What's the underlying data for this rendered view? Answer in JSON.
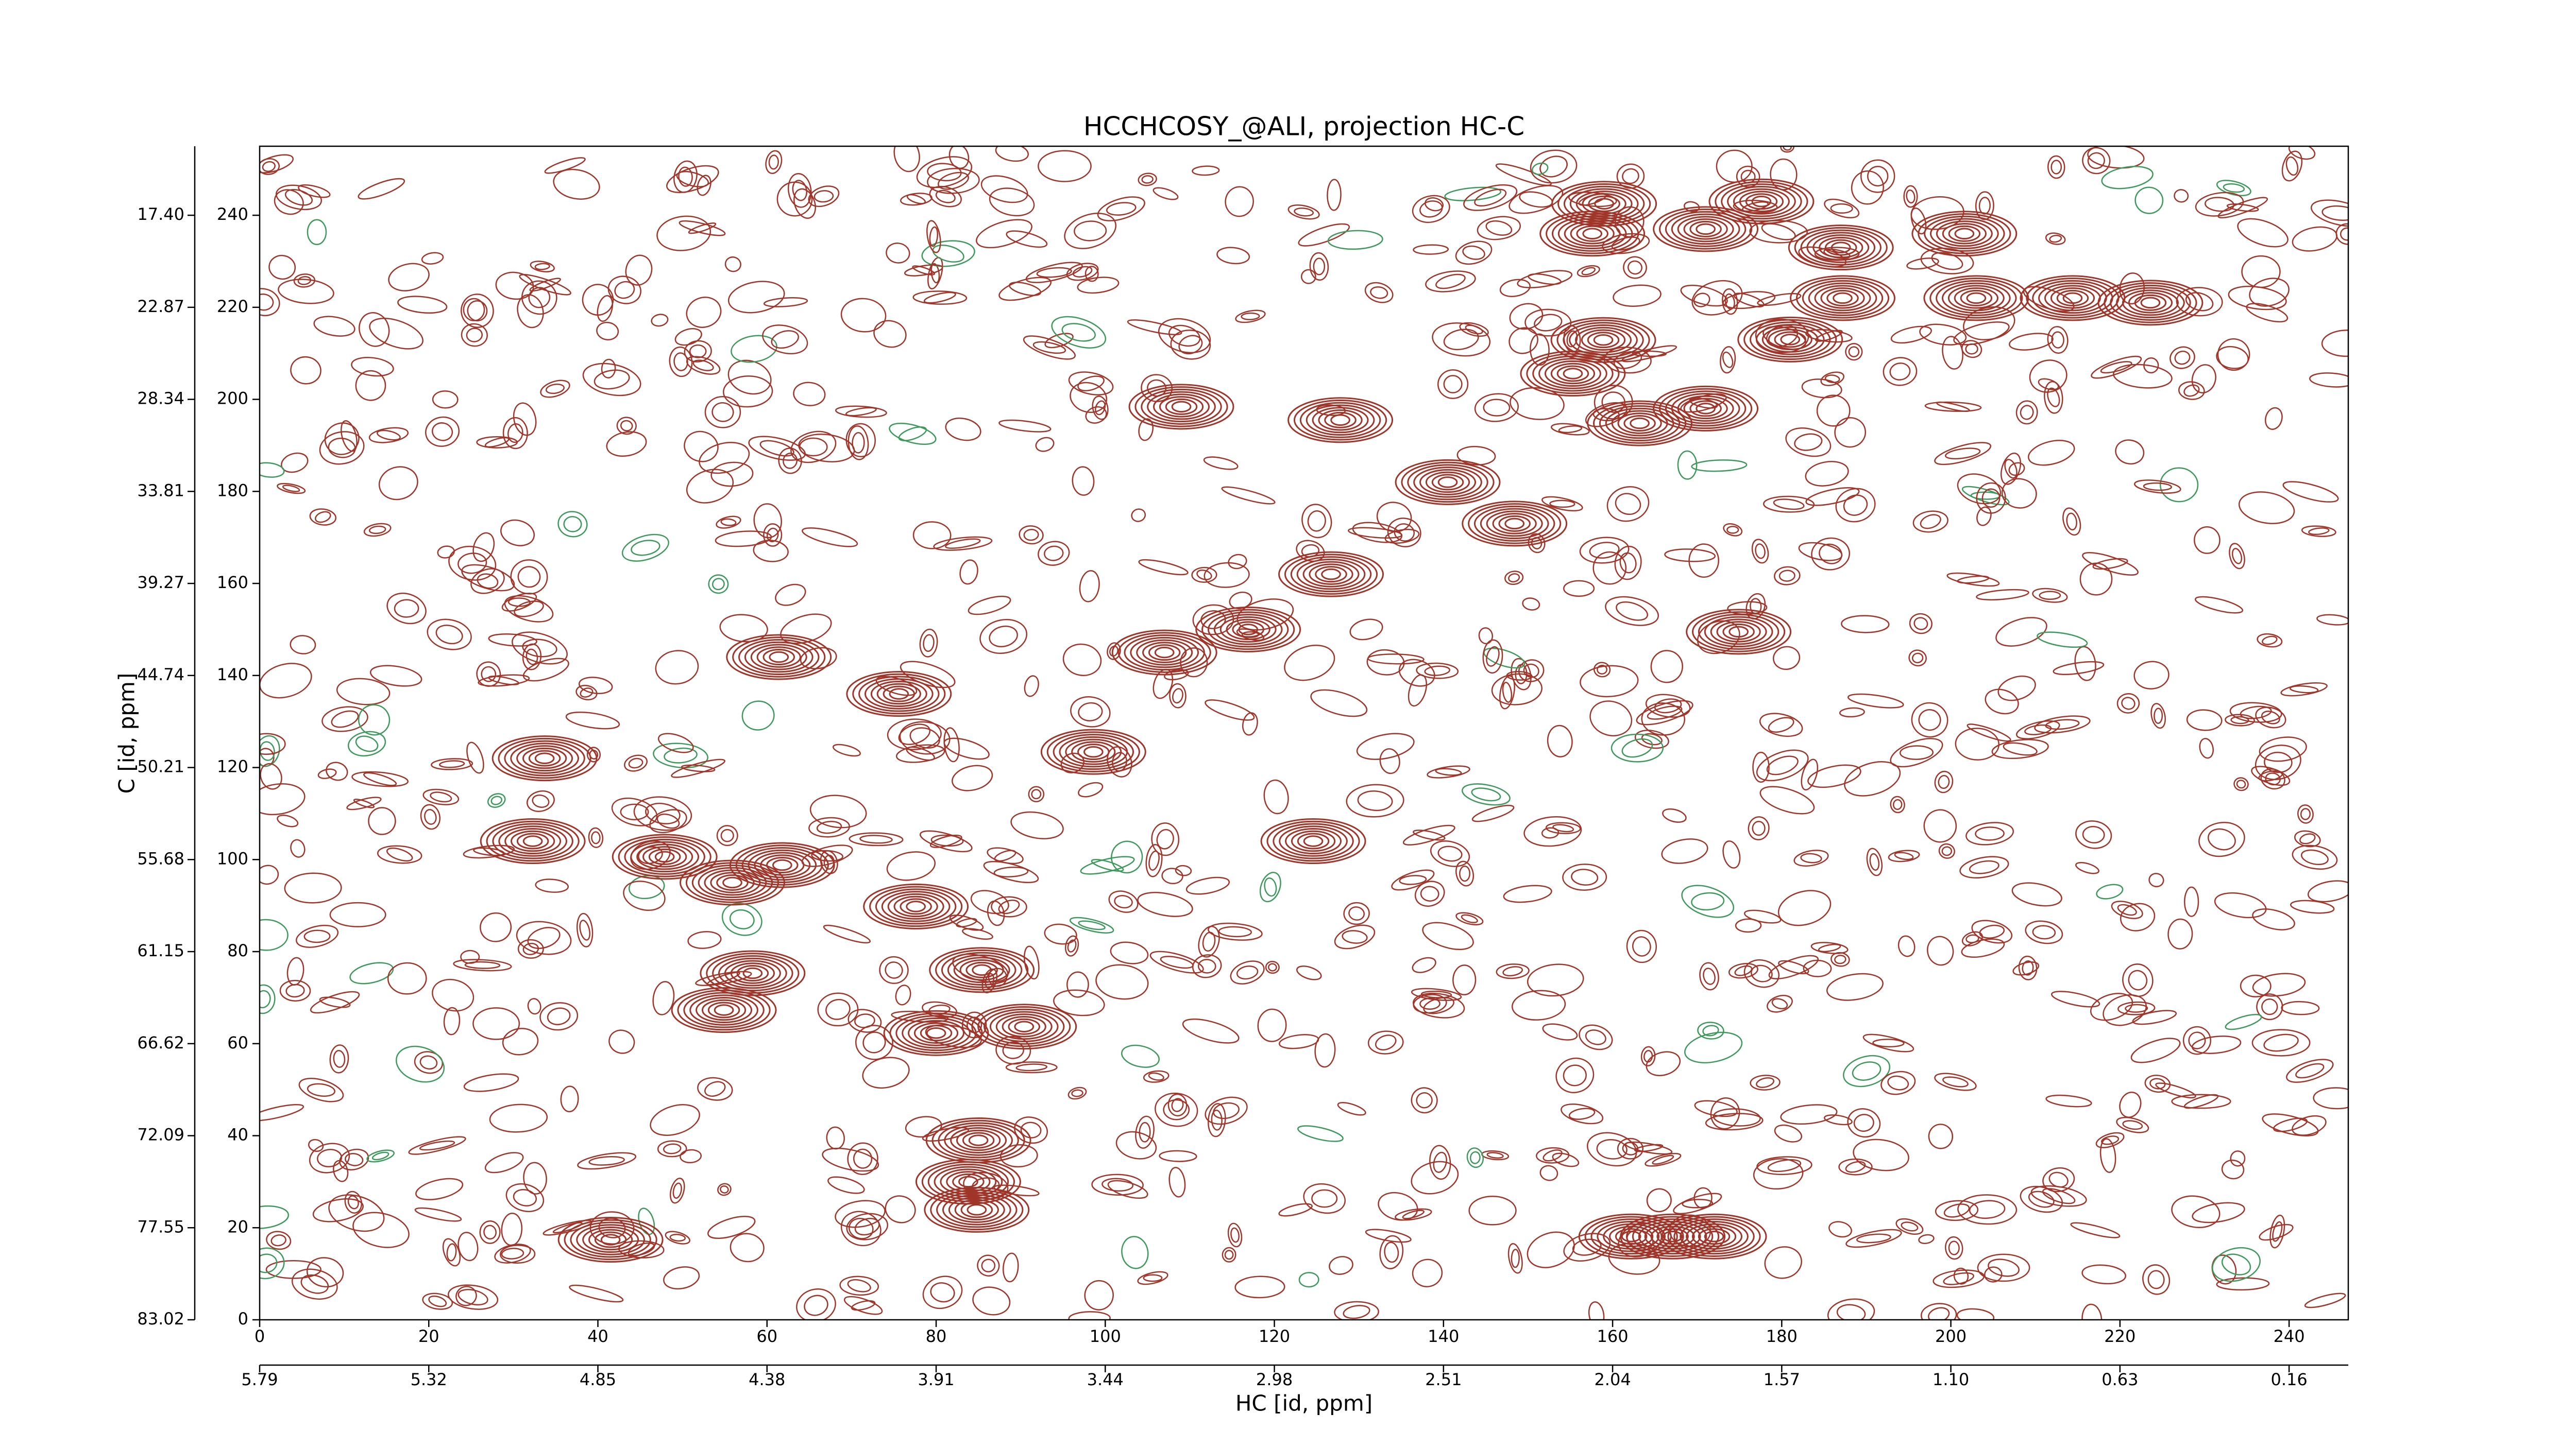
{
  "chart_data": {
    "type": "contour",
    "title": "HCCHCOSY_@ALI, projection HC-C",
    "xlabel": "HC [id, ppm]",
    "ylabel": "C [id, ppm]",
    "xlim": [
      0,
      247
    ],
    "ylim": [
      0,
      255
    ],
    "xticks": [
      0,
      20,
      40,
      60,
      80,
      100,
      120,
      140,
      160,
      180,
      200,
      220,
      240
    ],
    "yticks": [
      0,
      20,
      40,
      60,
      80,
      100,
      120,
      140,
      160,
      180,
      200,
      220,
      240
    ],
    "x2ticks": [
      {
        "value": 0,
        "label": "5.79"
      },
      {
        "value": 20,
        "label": "5.32"
      },
      {
        "value": 40,
        "label": "4.85"
      },
      {
        "value": 60,
        "label": "4.38"
      },
      {
        "value": 80,
        "label": "3.91"
      },
      {
        "value": 100,
        "label": "3.44"
      },
      {
        "value": 120,
        "label": "2.98"
      },
      {
        "value": 140,
        "label": "2.51"
      },
      {
        "value": 160,
        "label": "2.04"
      },
      {
        "value": 180,
        "label": "1.57"
      },
      {
        "value": 200,
        "label": "1.10"
      },
      {
        "value": 220,
        "label": "0.63"
      },
      {
        "value": 240,
        "label": "0.16"
      }
    ],
    "y2ticks": [
      {
        "value": 0,
        "label": "83.02"
      },
      {
        "value": 20,
        "label": "77.55"
      },
      {
        "value": 40,
        "label": "72.09"
      },
      {
        "value": 60,
        "label": "66.62"
      },
      {
        "value": 80,
        "label": "61.15"
      },
      {
        "value": 100,
        "label": "55.68"
      },
      {
        "value": 120,
        "label": "50.21"
      },
      {
        "value": 140,
        "label": "44.74"
      },
      {
        "value": 160,
        "label": "39.27"
      },
      {
        "value": 180,
        "label": "33.81"
      },
      {
        "value": 200,
        "label": "28.34"
      },
      {
        "value": 220,
        "label": "22.87"
      },
      {
        "value": 240,
        "label": "17.40"
      }
    ],
    "color": "#a0352a",
    "negative_color": "#3d9a5c",
    "peaks": {
      "x": [
        159,
        157.6,
        158.9,
        177.6,
        171,
        187,
        187.2,
        201.6,
        203,
        214.4,
        223.6,
        181,
        155.3,
        171,
        163.2,
        140.5,
        148.4,
        109,
        127.8,
        116.9,
        107,
        126.7,
        75.6,
        61.4,
        98.6,
        47.9,
        55.9,
        61.8,
        77.6,
        85.4,
        58.3,
        54.9,
        80,
        90.4,
        85,
        83.8,
        84.8,
        41.5,
        162.2,
        167.1,
        172,
        32.3,
        33.7,
        174.9,
        124.6
      ],
      "y": [
        242.5,
        236,
        212.9,
        243,
        237,
        233,
        222,
        236,
        222,
        222,
        221,
        213,
        205.6,
        198,
        194.8,
        182,
        173,
        198.4,
        195.5,
        150,
        145,
        162,
        136,
        144,
        123.4,
        100.6,
        95,
        98.8,
        89.8,
        76,
        75.3,
        67.3,
        62.3,
        63.7,
        39,
        30,
        23.9,
        17.4,
        18.1,
        18.1,
        18.1,
        104,
        122,
        149.5,
        104
      ]
    }
  }
}
